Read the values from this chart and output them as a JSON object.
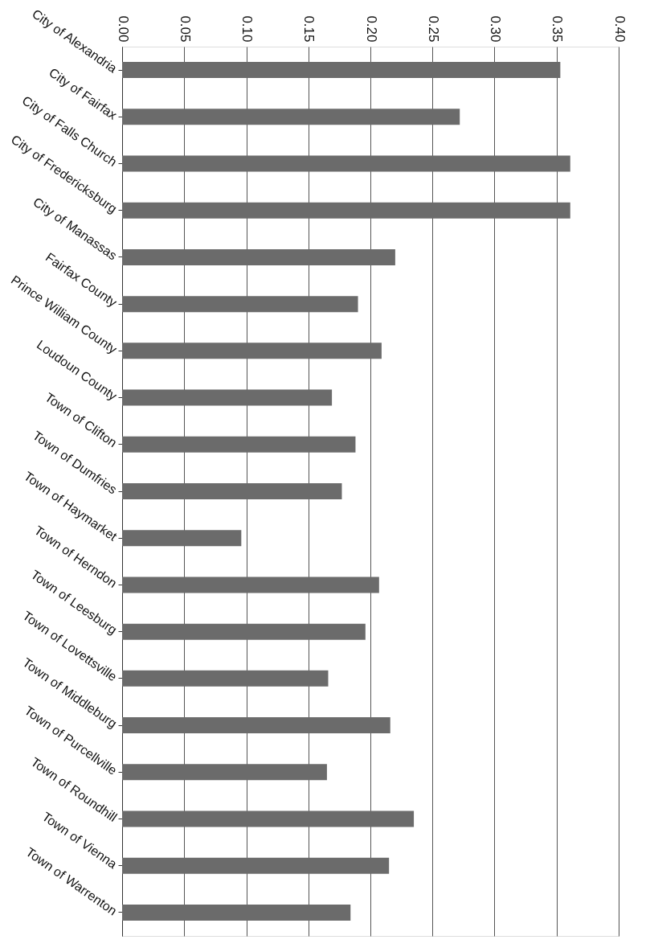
{
  "chart_data": {
    "type": "bar",
    "orientation": "horizontal",
    "categories": [
      "City of Alexandria",
      "City of Fairfax",
      "City of Falls Church",
      "City of Fredericksburg",
      "City of Manassas",
      "Fairfax County",
      "Prince William County",
      "Loudoun County",
      "Town of Clifton",
      "Town of Dumfries",
      "Town of Haymarket",
      "Town of Herndon",
      "Town of Leesburg",
      "Town of Lovettsville",
      "Town of Middleburg",
      "Town of Purcellville",
      "Town of Roundhill",
      "Town of Vienna",
      "Town of Warrenton"
    ],
    "values": [
      0.353,
      0.272,
      0.361,
      0.361,
      0.22,
      0.19,
      0.209,
      0.169,
      0.188,
      0.177,
      0.096,
      0.207,
      0.196,
      0.166,
      0.216,
      0.165,
      0.235,
      0.215,
      0.184
    ],
    "color": "#6b6b6b",
    "xlim": [
      0,
      0.4
    ],
    "xticks": [
      {
        "value": 0,
        "label": "0.00"
      },
      {
        "value": 0.05,
        "label": "0.05"
      },
      {
        "value": 0.1,
        "label": "0.10"
      },
      {
        "value": 0.15,
        "label": "0.15"
      },
      {
        "value": 0.2,
        "label": "0.20"
      },
      {
        "value": 0.25,
        "label": "0.25"
      },
      {
        "value": 0.3,
        "label": "0.30"
      },
      {
        "value": 0.35,
        "label": "0.35"
      },
      {
        "value": 0.4,
        "label": "0.40"
      }
    ],
    "grid": "x"
  }
}
